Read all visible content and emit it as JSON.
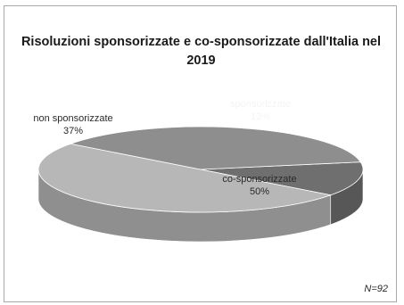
{
  "chart_data": {
    "type": "pie",
    "title_line1": "Risoluzioni sponsorizzate e co-sponsorizzate dall'Italia nel",
    "title_line2": "2019",
    "slices": [
      {
        "name": "sponsorizzate",
        "label": "13%",
        "value": 13,
        "color": "#6f6f6f",
        "label_tone": "light"
      },
      {
        "name": "co-sponsorizzate",
        "label": "50%",
        "value": 50,
        "color": "#b7b7b7",
        "label_tone": "dark"
      },
      {
        "name": "non sponsorizzate",
        "label": "37%",
        "value": 37,
        "color": "#8e8e8e",
        "label_tone": "dark"
      }
    ],
    "note": "N=92"
  }
}
